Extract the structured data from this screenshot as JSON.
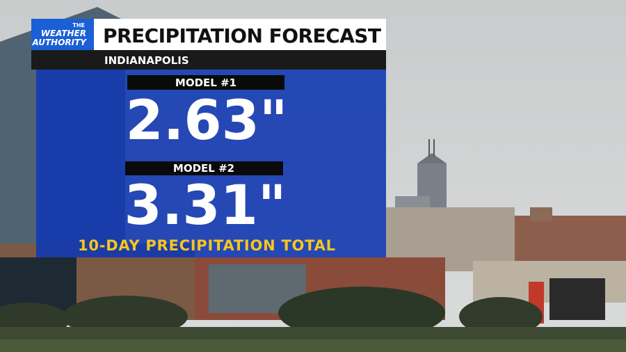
{
  "header": {
    "logo": [
      "THE",
      "WEATHER",
      "AUTHORITY"
    ],
    "title": "PRECIPITATION FORECAST",
    "location": "INDIANAPOLIS"
  },
  "models": [
    {
      "label": "MODEL #1",
      "value": "2.63\""
    },
    {
      "label": "MODEL #2",
      "value": "3.31\""
    }
  ],
  "footer": "10-DAY PRECIPITATION TOTAL"
}
